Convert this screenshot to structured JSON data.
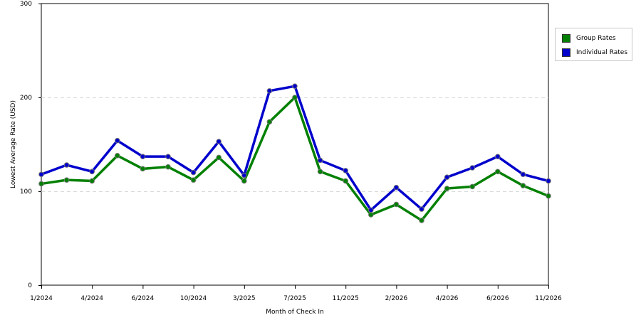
{
  "chart_data": {
    "type": "line",
    "xlabel": "Month of Check In",
    "ylabel": "Lowest Average Rate (USD)",
    "ylim": [
      0,
      300
    ],
    "yticks": [
      0,
      100,
      200,
      300
    ],
    "x_tick_labels": [
      "1/2024",
      "4/2024",
      "6/2024",
      "10/2024",
      "3/2025",
      "7/2025",
      "11/2025",
      "2/2026",
      "4/2026",
      "6/2026",
      "11/2026"
    ],
    "x_tick_indices": [
      0,
      2,
      4,
      6,
      8,
      10,
      12,
      14,
      16,
      18,
      20
    ],
    "grid": "horizontal dashed",
    "legend_position": "right",
    "series": [
      {
        "name": "Group Rates",
        "color": "#008000",
        "values": [
          108,
          112,
          111,
          138,
          124,
          126,
          112,
          136,
          111,
          174,
          200,
          121,
          111,
          75,
          86,
          69,
          103,
          105,
          121,
          106,
          95
        ]
      },
      {
        "name": "Individual Rates",
        "color": "#0000cc",
        "values": [
          118,
          128,
          121,
          154,
          137,
          137,
          120,
          153,
          117,
          207,
          212,
          133,
          122,
          80,
          104,
          81,
          115,
          125,
          137,
          118,
          111
        ]
      }
    ]
  }
}
